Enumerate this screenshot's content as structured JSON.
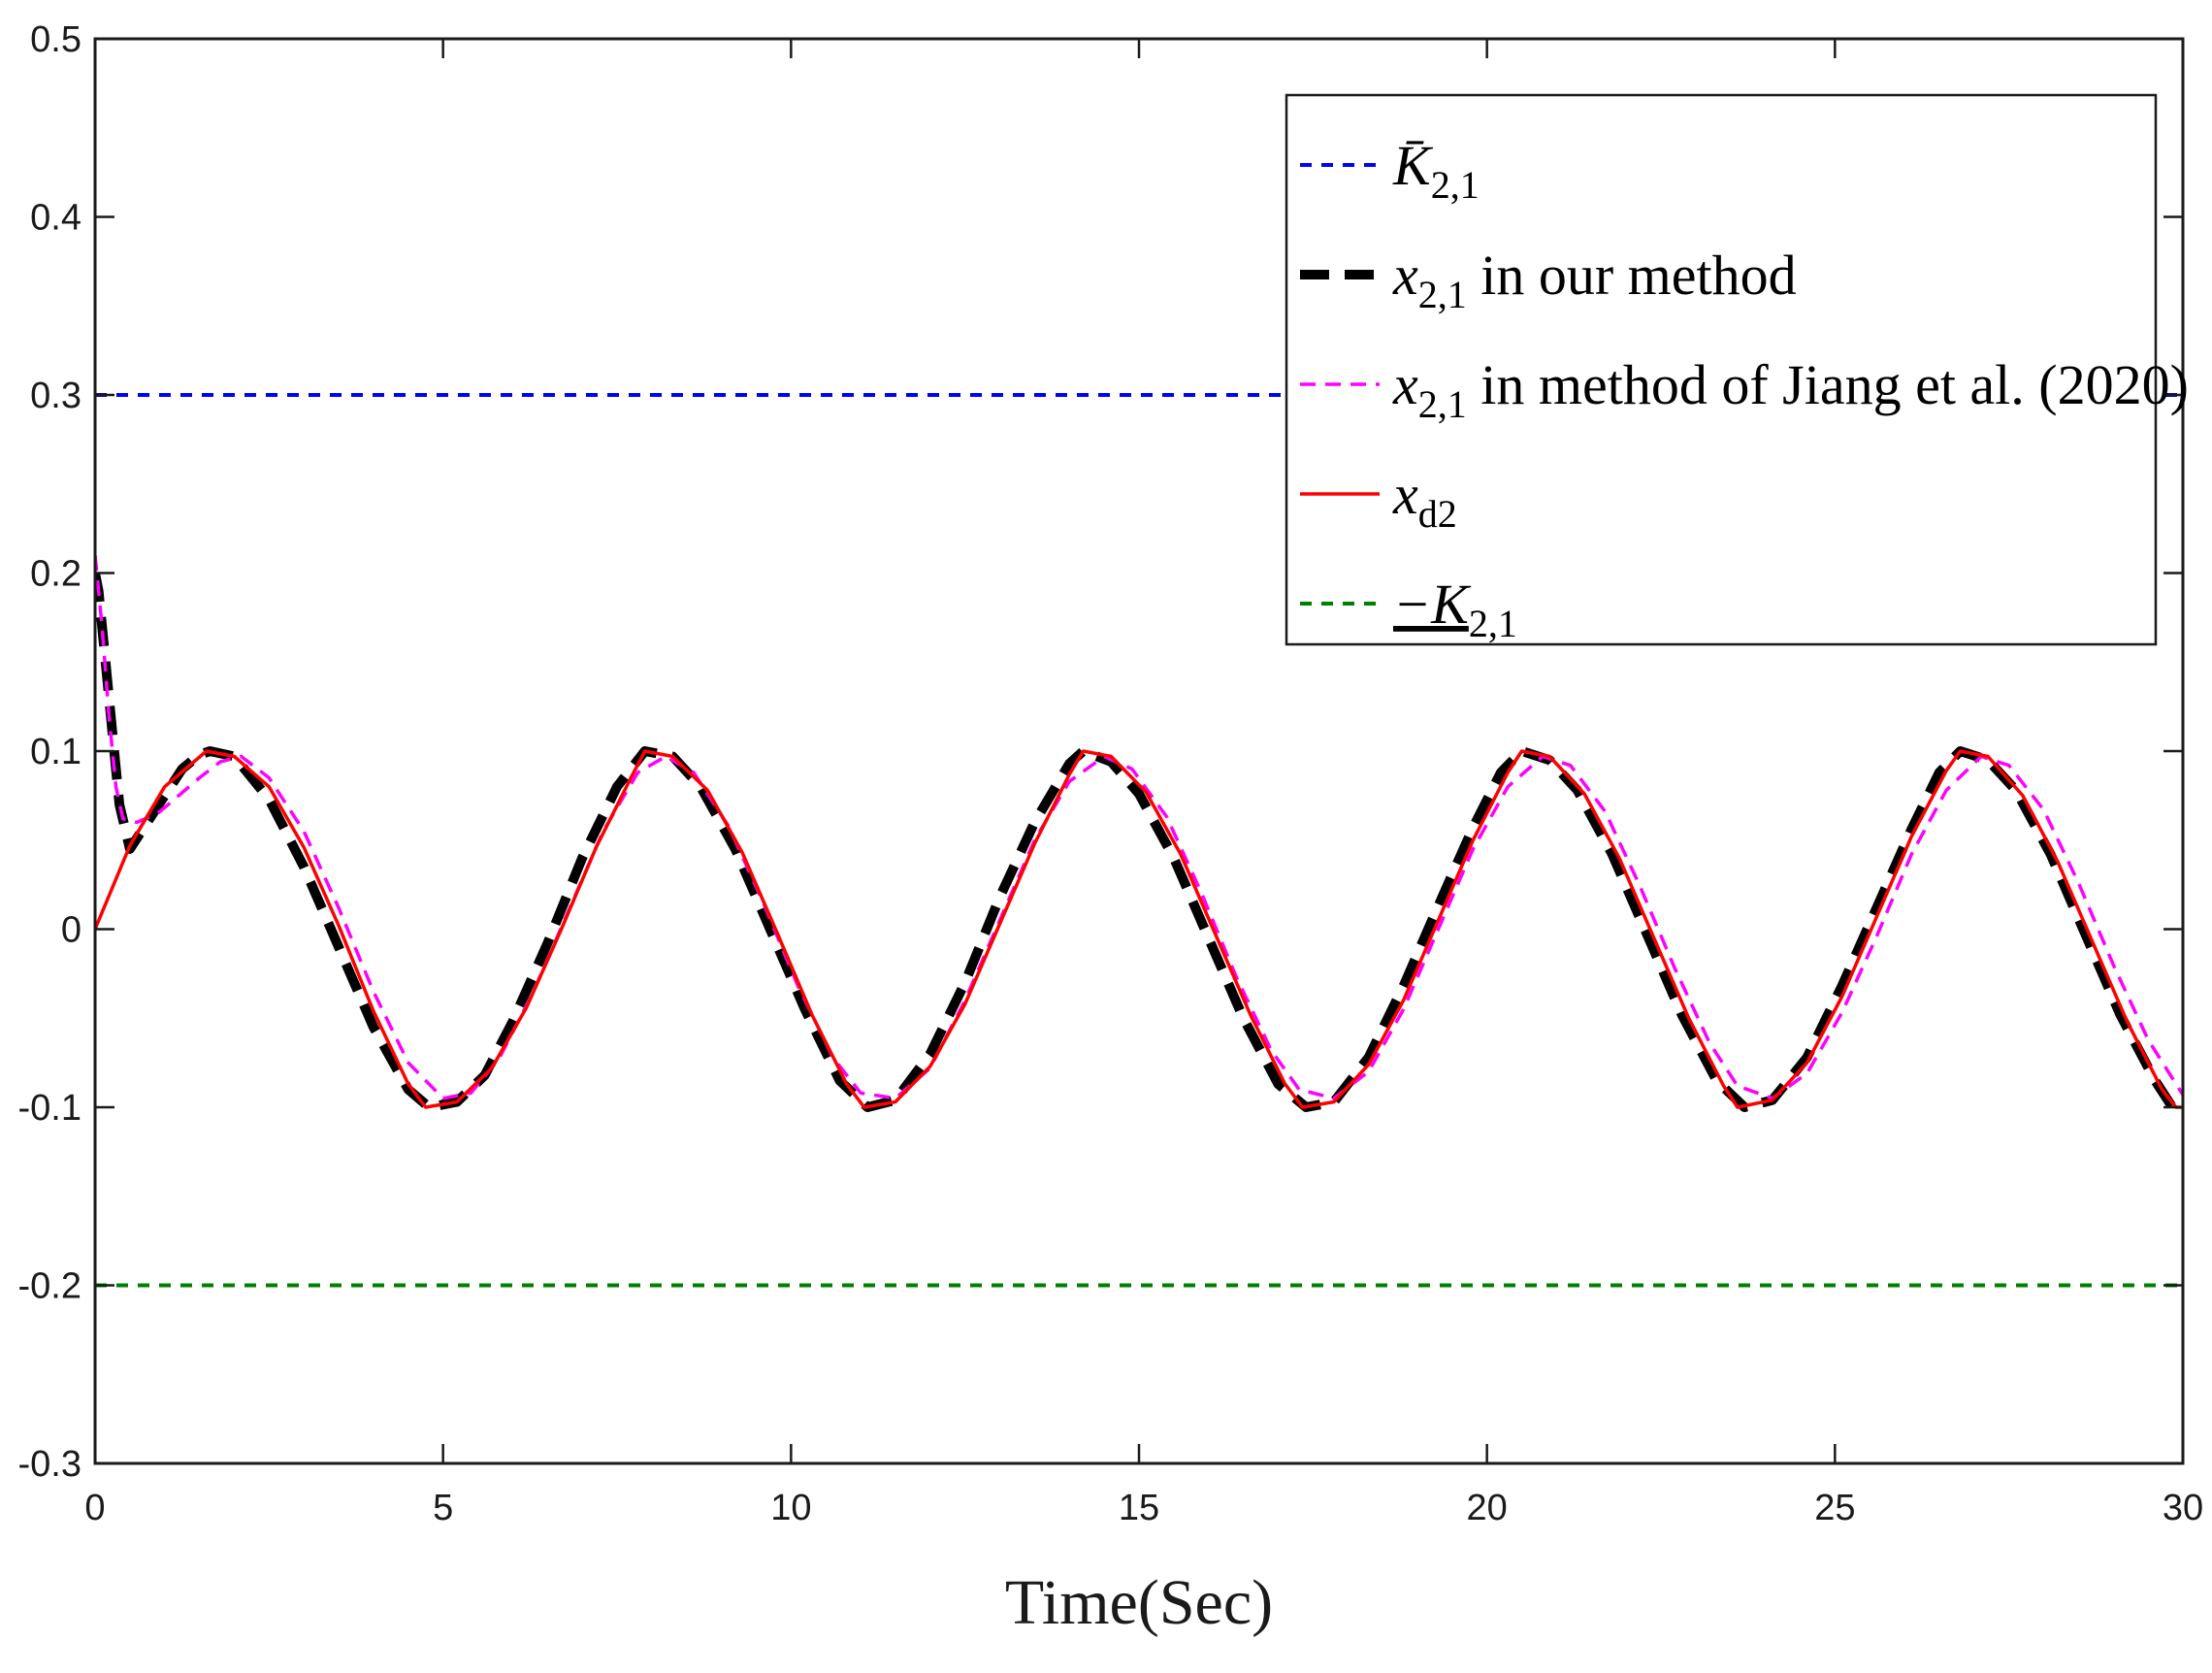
{
  "chart_data": {
    "type": "line",
    "xlabel": "Time(Sec)",
    "ylabel": "",
    "xlim": [
      0,
      30
    ],
    "ylim": [
      -0.3,
      0.5
    ],
    "xticks": [
      "0",
      "5",
      "10",
      "15",
      "20",
      "25",
      "30"
    ],
    "yticks": [
      "-0.3",
      "-0.2",
      "-0.1",
      "0",
      "0.1",
      "0.2",
      "0.3",
      "0.4",
      "0.5"
    ],
    "grid": false,
    "legend_position": "top-right",
    "series": [
      {
        "key": "upper_bound",
        "legend": {
          "main": "K̄",
          "sub": "2,1",
          "rest": ""
        },
        "color": "#0000ff",
        "style": "dotted",
        "points": [
          [
            0,
            0.3
          ],
          [
            30,
            0.3
          ]
        ]
      },
      {
        "key": "x21_ours",
        "legend": {
          "main": "x",
          "sub": "2,1",
          "rest": " in our method"
        },
        "color": "#000000",
        "style": "thick-dashed",
        "points": [
          [
            0,
            0.2
          ],
          [
            0.05,
            0.19
          ],
          [
            0.15,
            0.15
          ],
          [
            0.25,
            0.11
          ],
          [
            0.35,
            0.07
          ],
          [
            0.5,
            0.045
          ],
          [
            0.75,
            0.06
          ],
          [
            1.0,
            0.075
          ],
          [
            1.25,
            0.09
          ],
          [
            1.5,
            0.098
          ],
          [
            1.65,
            0.1
          ],
          [
            2.0,
            0.097
          ],
          [
            2.5,
            0.073
          ],
          [
            3.0,
            0.035
          ],
          [
            3.5,
            -0.01
          ],
          [
            4.0,
            -0.055
          ],
          [
            4.5,
            -0.09
          ],
          [
            4.8,
            -0.1
          ],
          [
            5.2,
            -0.097
          ],
          [
            5.6,
            -0.082
          ],
          [
            6.0,
            -0.052
          ],
          [
            6.5,
            -0.008
          ],
          [
            7.0,
            0.04
          ],
          [
            7.5,
            0.08
          ],
          [
            7.9,
            0.1
          ],
          [
            8.3,
            0.097
          ],
          [
            8.7,
            0.08
          ],
          [
            9.2,
            0.045
          ],
          [
            9.7,
            0.0
          ],
          [
            10.2,
            -0.045
          ],
          [
            10.7,
            -0.085
          ],
          [
            11.1,
            -0.1
          ],
          [
            11.5,
            -0.096
          ],
          [
            12.0,
            -0.07
          ],
          [
            12.5,
            -0.03
          ],
          [
            13.0,
            0.018
          ],
          [
            13.5,
            0.06
          ],
          [
            14.0,
            0.093
          ],
          [
            14.2,
            0.1
          ],
          [
            14.6,
            0.094
          ],
          [
            15.0,
            0.076
          ],
          [
            15.5,
            0.04
          ],
          [
            16.0,
            -0.005
          ],
          [
            16.5,
            -0.05
          ],
          [
            17.0,
            -0.087
          ],
          [
            17.4,
            -0.1
          ],
          [
            17.8,
            -0.097
          ],
          [
            18.3,
            -0.072
          ],
          [
            18.8,
            -0.032
          ],
          [
            19.3,
            0.013
          ],
          [
            19.8,
            0.057
          ],
          [
            20.2,
            0.088
          ],
          [
            20.5,
            0.1
          ],
          [
            20.9,
            0.095
          ],
          [
            21.3,
            0.078
          ],
          [
            21.8,
            0.042
          ],
          [
            22.3,
            -0.003
          ],
          [
            22.8,
            -0.048
          ],
          [
            23.3,
            -0.085
          ],
          [
            23.7,
            -0.1
          ],
          [
            24.1,
            -0.096
          ],
          [
            24.6,
            -0.072
          ],
          [
            25.1,
            -0.032
          ],
          [
            25.6,
            0.012
          ],
          [
            26.1,
            0.056
          ],
          [
            26.5,
            0.088
          ],
          [
            26.8,
            0.1
          ],
          [
            27.2,
            0.095
          ],
          [
            27.6,
            0.078
          ],
          [
            28.1,
            0.042
          ],
          [
            28.6,
            -0.003
          ],
          [
            29.1,
            -0.048
          ],
          [
            29.6,
            -0.085
          ],
          [
            29.85,
            -0.1
          ],
          [
            30,
            -0.1
          ]
        ]
      },
      {
        "key": "x21_jiang",
        "legend": {
          "main": "x",
          "sub": "2,1",
          "rest": " in method of Jiang et al. (2020)"
        },
        "color": "#ff00ff",
        "style": "dashed",
        "points": [
          [
            0,
            0.21
          ],
          [
            0.1,
            0.17
          ],
          [
            0.2,
            0.12
          ],
          [
            0.3,
            0.08
          ],
          [
            0.4,
            0.062
          ],
          [
            0.6,
            0.06
          ],
          [
            0.9,
            0.065
          ],
          [
            1.2,
            0.075
          ],
          [
            1.5,
            0.085
          ],
          [
            1.8,
            0.094
          ],
          [
            2.1,
            0.097
          ],
          [
            2.5,
            0.085
          ],
          [
            3.0,
            0.055
          ],
          [
            3.5,
            0.012
          ],
          [
            4.0,
            -0.035
          ],
          [
            4.5,
            -0.075
          ],
          [
            5.0,
            -0.095
          ],
          [
            5.4,
            -0.092
          ],
          [
            5.8,
            -0.073
          ],
          [
            6.3,
            -0.035
          ],
          [
            6.8,
            0.01
          ],
          [
            7.3,
            0.055
          ],
          [
            7.8,
            0.088
          ],
          [
            8.2,
            0.097
          ],
          [
            8.6,
            0.088
          ],
          [
            9.1,
            0.058
          ],
          [
            9.6,
            0.015
          ],
          [
            10.1,
            -0.032
          ],
          [
            10.6,
            -0.072
          ],
          [
            11.0,
            -0.092
          ],
          [
            11.5,
            -0.095
          ],
          [
            12.0,
            -0.078
          ],
          [
            12.5,
            -0.04
          ],
          [
            13.0,
            0.005
          ],
          [
            13.5,
            0.05
          ],
          [
            14.0,
            0.083
          ],
          [
            14.5,
            0.097
          ],
          [
            14.9,
            0.09
          ],
          [
            15.4,
            0.063
          ],
          [
            15.9,
            0.02
          ],
          [
            16.4,
            -0.027
          ],
          [
            16.9,
            -0.068
          ],
          [
            17.3,
            -0.09
          ],
          [
            17.8,
            -0.095
          ],
          [
            18.3,
            -0.08
          ],
          [
            18.8,
            -0.045
          ],
          [
            19.3,
            0.0
          ],
          [
            19.8,
            0.045
          ],
          [
            20.3,
            0.08
          ],
          [
            20.8,
            0.097
          ],
          [
            21.2,
            0.092
          ],
          [
            21.7,
            0.066
          ],
          [
            22.2,
            0.024
          ],
          [
            22.7,
            -0.022
          ],
          [
            23.2,
            -0.064
          ],
          [
            23.6,
            -0.088
          ],
          [
            24.1,
            -0.095
          ],
          [
            24.6,
            -0.081
          ],
          [
            25.1,
            -0.047
          ],
          [
            25.6,
            -0.004
          ],
          [
            26.1,
            0.042
          ],
          [
            26.6,
            0.078
          ],
          [
            27.1,
            0.097
          ],
          [
            27.5,
            0.092
          ],
          [
            28.0,
            0.067
          ],
          [
            28.5,
            0.026
          ],
          [
            29.0,
            -0.02
          ],
          [
            29.5,
            -0.062
          ],
          [
            30,
            -0.093
          ]
        ]
      },
      {
        "key": "xd2",
        "legend": {
          "main": "x",
          "sub": "d2",
          "rest": ""
        },
        "color": "#ff0000",
        "style": "solid",
        "points": [
          [
            0,
            0.0
          ],
          [
            0.5,
            0.047
          ],
          [
            1.0,
            0.08
          ],
          [
            1.6,
            0.1
          ],
          [
            2.0,
            0.097
          ],
          [
            2.5,
            0.08
          ],
          [
            3.0,
            0.046
          ],
          [
            3.5,
            0.002
          ],
          [
            4.0,
            -0.046
          ],
          [
            4.5,
            -0.087
          ],
          [
            4.75,
            -0.1
          ],
          [
            5.2,
            -0.097
          ],
          [
            5.7,
            -0.078
          ],
          [
            6.2,
            -0.044
          ],
          [
            6.7,
            0.0
          ],
          [
            7.2,
            0.046
          ],
          [
            7.7,
            0.085
          ],
          [
            7.9,
            0.1
          ],
          [
            8.3,
            0.097
          ],
          [
            8.8,
            0.078
          ],
          [
            9.3,
            0.043
          ],
          [
            9.8,
            -0.002
          ],
          [
            10.3,
            -0.048
          ],
          [
            10.8,
            -0.087
          ],
          [
            11.05,
            -0.1
          ],
          [
            11.5,
            -0.097
          ],
          [
            12.0,
            -0.077
          ],
          [
            12.5,
            -0.042
          ],
          [
            13.0,
            0.003
          ],
          [
            13.5,
            0.048
          ],
          [
            14.0,
            0.087
          ],
          [
            14.2,
            0.1
          ],
          [
            14.6,
            0.097
          ],
          [
            15.1,
            0.077
          ],
          [
            15.6,
            0.042
          ],
          [
            16.1,
            -0.003
          ],
          [
            16.6,
            -0.048
          ],
          [
            17.1,
            -0.087
          ],
          [
            17.35,
            -0.1
          ],
          [
            17.8,
            -0.097
          ],
          [
            18.3,
            -0.076
          ],
          [
            18.8,
            -0.04
          ],
          [
            19.3,
            0.005
          ],
          [
            19.8,
            0.05
          ],
          [
            20.3,
            0.088
          ],
          [
            20.5,
            0.1
          ],
          [
            20.9,
            0.097
          ],
          [
            21.4,
            0.076
          ],
          [
            21.9,
            0.04
          ],
          [
            22.4,
            -0.005
          ],
          [
            22.9,
            -0.05
          ],
          [
            23.4,
            -0.088
          ],
          [
            23.6,
            -0.1
          ],
          [
            24.1,
            -0.096
          ],
          [
            24.6,
            -0.075
          ],
          [
            25.1,
            -0.038
          ],
          [
            25.6,
            0.007
          ],
          [
            26.1,
            0.052
          ],
          [
            26.6,
            0.089
          ],
          [
            26.8,
            0.1
          ],
          [
            27.2,
            0.097
          ],
          [
            27.7,
            0.075
          ],
          [
            28.2,
            0.038
          ],
          [
            28.7,
            -0.007
          ],
          [
            29.2,
            -0.052
          ],
          [
            29.7,
            -0.09
          ],
          [
            29.9,
            -0.1
          ],
          [
            30,
            -0.1
          ]
        ]
      },
      {
        "key": "lower_bound",
        "legend": {
          "main": "−K",
          "sub": "2,1",
          "rest": "",
          "underline": true
        },
        "color": "#008000",
        "style": "dotted",
        "points": [
          [
            0,
            -0.2
          ],
          [
            30,
            -0.2
          ]
        ]
      }
    ]
  }
}
